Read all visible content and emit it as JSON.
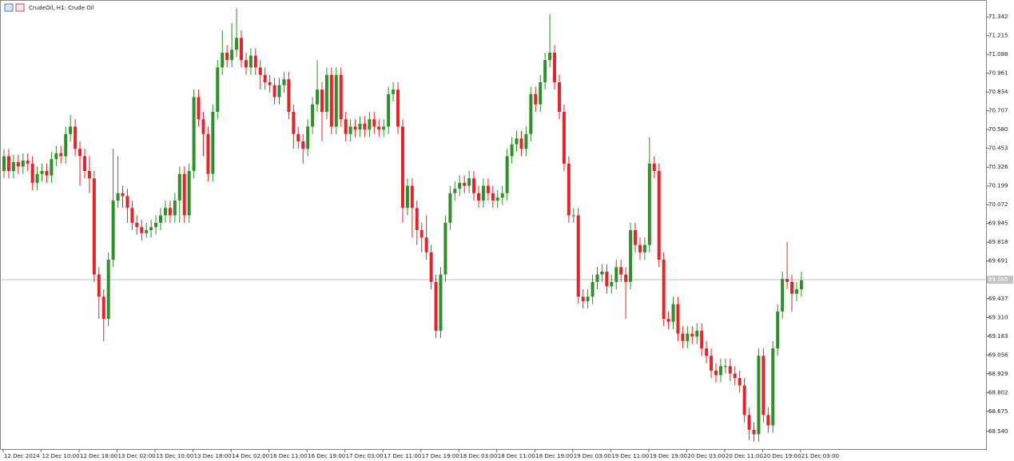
{
  "chart_data": {
    "type": "candlestick",
    "title": "CrudeOil, H1:  Crude Oil",
    "up_color": "#2f8f2a",
    "down_color": "#e3242b",
    "ylim": [
      68.42,
      71.44
    ],
    "yticks": [
      71.342,
      71.215,
      71.088,
      70.961,
      70.834,
      70.707,
      {
        "value": 70.58,
        "label": "70.580"
      },
      70.453,
      70.326,
      70.199,
      70.072,
      69.945,
      69.818,
      69.691,
      69.437,
      {
        "value": 69.31,
        "label": "69.310"
      },
      69.183,
      69.056,
      68.929,
      68.802,
      68.675,
      {
        "value": 68.54,
        "label": "68.540"
      }
    ],
    "current_price": {
      "value": 69.565,
      "label": "69.565"
    },
    "x_labels": [
      "12 Dec 2024",
      "12 Dec 10:00",
      "12 Dec 18:00",
      "13 Dec 02:00",
      "13 Dec 10:00",
      "13 Dec 18:00",
      "14 Dec 02:00",
      "16 Dec 11:00",
      "16 Dec 19:00",
      "17 Dec 03:00",
      "17 Dec 11:00",
      "17 Dec 19:00",
      "18 Dec 03:00",
      "18 Dec 11:00",
      "18 Dec 19:00",
      "19 Dec 03:00",
      "19 Dec 11:00",
      "19 Dec 19:00",
      "20 Dec 03:00",
      "20 Dec 11:00",
      "20 Dec 19:00",
      "21 Dec 03:00"
    ],
    "open": [
      70.3,
      70.4,
      70.3,
      70.36,
      70.33,
      70.37,
      70.35,
      70.22,
      70.28,
      70.3,
      70.27,
      70.38,
      70.42,
      70.4,
      70.55,
      70.6,
      70.45,
      70.4,
      70.3,
      70.25,
      69.6,
      69.45,
      69.3,
      69.7,
      70.1,
      70.15,
      70.13,
      70.05,
      69.95,
      69.92,
      69.88,
      69.9,
      69.92,
      69.95,
      70.0,
      70.05,
      70.0,
      70.1,
      70.28,
      70.0,
      70.3,
      70.8,
      70.65,
      70.55,
      70.28,
      70.7,
      71.0,
      71.1,
      71.05,
      71.12,
      71.2,
      71.05,
      71.0,
      71.08,
      71.0,
      70.95,
      70.9,
      70.88,
      70.8,
      70.88,
      70.92,
      70.7,
      70.55,
      70.5,
      70.45,
      70.6,
      70.75,
      70.85,
      70.7,
      70.95,
      70.6,
      70.95,
      70.65,
      70.55,
      70.6,
      70.58,
      70.62,
      70.58,
      70.65,
      70.6,
      70.58,
      70.6,
      70.82,
      70.85,
      70.6,
      70.05,
      70.2,
      70.05,
      69.9,
      69.85,
      69.75,
      69.55,
      69.22,
      69.6,
      69.95,
      70.15,
      70.18,
      70.22,
      70.2,
      70.25,
      70.15,
      70.1,
      70.2,
      70.15,
      70.1,
      70.12,
      70.15,
      70.4,
      70.48,
      70.52,
      70.45,
      70.55,
      70.82,
      70.75,
      70.9,
      71.05,
      71.1,
      70.9,
      70.7,
      70.35,
      70.0,
      70.0,
      69.45,
      69.42,
      69.45,
      69.55,
      69.6,
      69.62,
      69.52,
      69.55,
      69.65,
      69.6,
      69.55,
      69.9,
      69.8,
      69.75,
      69.8,
      70.35,
      70.3,
      69.7,
      69.3,
      69.28,
      69.4,
      69.2,
      69.15,
      69.2,
      69.18,
      69.22,
      69.1,
      69.05,
      68.95,
      68.92,
      68.98,
      68.98,
      68.93,
      68.9,
      68.85,
      68.65,
      68.55,
      68.52,
      69.05,
      68.65,
      68.58,
      69.1,
      69.35,
      69.57,
      69.55,
      69.47,
      69.5
    ],
    "high": [
      70.45,
      70.45,
      70.41,
      70.41,
      70.42,
      70.42,
      70.4,
      70.33,
      70.35,
      70.35,
      70.43,
      70.47,
      70.47,
      70.6,
      70.68,
      70.65,
      70.5,
      70.45,
      70.4,
      70.3,
      69.65,
      69.5,
      69.75,
      70.45,
      70.4,
      70.2,
      70.18,
      70.1,
      70.0,
      69.97,
      69.95,
      69.97,
      70.0,
      70.05,
      70.1,
      70.1,
      70.15,
      70.33,
      70.33,
      70.35,
      70.85,
      70.85,
      70.7,
      70.6,
      70.75,
      71.05,
      71.25,
      71.15,
      71.3,
      71.4,
      71.25,
      71.1,
      71.13,
      71.13,
      71.05,
      71.0,
      70.95,
      70.93,
      70.93,
      70.97,
      70.97,
      70.75,
      70.6,
      70.55,
      70.65,
      70.8,
      71.05,
      70.9,
      71.0,
      71.0,
      71.0,
      71.0,
      70.7,
      70.65,
      70.65,
      70.67,
      70.67,
      70.7,
      70.7,
      70.65,
      70.65,
      70.87,
      70.9,
      70.9,
      70.65,
      70.25,
      70.25,
      70.1,
      69.95,
      70.0,
      69.8,
      69.6,
      69.65,
      70.0,
      70.2,
      70.23,
      70.27,
      70.27,
      70.3,
      70.3,
      70.2,
      70.25,
      70.25,
      70.2,
      70.17,
      70.2,
      70.45,
      70.53,
      70.57,
      70.57,
      70.6,
      70.87,
      70.87,
      70.95,
      71.1,
      71.36,
      71.15,
      70.95,
      70.75,
      70.4,
      70.05,
      70.05,
      69.5,
      69.5,
      69.6,
      69.65,
      69.67,
      69.67,
      69.6,
      69.7,
      69.7,
      69.65,
      69.95,
      69.95,
      69.85,
      69.85,
      70.53,
      70.4,
      70.35,
      69.75,
      69.35,
      69.45,
      69.45,
      69.25,
      69.25,
      69.25,
      69.27,
      69.27,
      69.15,
      69.1,
      69.0,
      69.03,
      69.03,
      69.03,
      68.98,
      68.95,
      68.9,
      68.7,
      68.6,
      69.1,
      69.1,
      68.7,
      69.15,
      69.4,
      69.62,
      69.82,
      69.6,
      69.55,
      69.62
    ],
    "low": [
      70.25,
      70.25,
      70.25,
      70.28,
      70.28,
      70.3,
      70.17,
      70.17,
      70.23,
      70.22,
      70.22,
      70.33,
      70.35,
      70.35,
      70.5,
      70.4,
      70.2,
      70.25,
      70.15,
      69.55,
      69.3,
      69.15,
      69.25,
      69.65,
      70.05,
      70.05,
      69.95,
      69.9,
      69.87,
      69.83,
      69.85,
      69.85,
      69.87,
      69.9,
      69.95,
      69.95,
      69.95,
      69.95,
      69.95,
      69.95,
      70.25,
      70.6,
      70.4,
      70.23,
      70.23,
      70.65,
      70.95,
      71.0,
      71.0,
      71.07,
      71.0,
      70.95,
      70.95,
      70.95,
      70.85,
      70.85,
      70.83,
      70.75,
      70.75,
      70.83,
      70.65,
      70.45,
      70.45,
      70.35,
      70.4,
      70.55,
      70.7,
      70.5,
      70.65,
      70.55,
      70.55,
      70.6,
      70.5,
      70.5,
      70.53,
      70.53,
      70.53,
      70.53,
      70.55,
      70.53,
      70.53,
      70.55,
      70.77,
      70.55,
      69.95,
      70.0,
      69.85,
      69.8,
      69.75,
      69.7,
      69.5,
      69.17,
      69.17,
      69.55,
      69.9,
      70.1,
      70.13,
      70.15,
      70.15,
      70.1,
      70.05,
      70.05,
      70.1,
      70.05,
      70.05,
      70.07,
      70.1,
      70.35,
      70.43,
      70.4,
      70.4,
      70.5,
      70.7,
      70.7,
      70.85,
      71.0,
      70.85,
      70.65,
      70.3,
      69.95,
      69.95,
      69.4,
      69.37,
      69.37,
      69.4,
      69.5,
      69.55,
      69.47,
      69.47,
      69.5,
      69.55,
      69.3,
      69.5,
      69.75,
      69.7,
      69.7,
      69.75,
      70.25,
      69.65,
      69.25,
      69.23,
      69.23,
      69.15,
      69.1,
      69.1,
      69.13,
      69.13,
      69.05,
      69.0,
      68.9,
      68.87,
      68.87,
      68.93,
      68.88,
      68.85,
      68.8,
      68.6,
      68.48,
      68.47,
      68.47,
      68.6,
      68.53,
      68.53,
      69.05,
      69.3,
      69.5,
      69.35,
      69.42,
      69.45
    ],
    "close": [
      70.4,
      70.3,
      70.36,
      70.33,
      70.37,
      70.35,
      70.22,
      70.28,
      70.3,
      70.27,
      70.38,
      70.42,
      70.4,
      70.55,
      70.6,
      70.45,
      70.4,
      70.3,
      70.25,
      69.6,
      69.45,
      69.3,
      69.7,
      70.1,
      70.15,
      70.13,
      70.05,
      69.95,
      69.92,
      69.88,
      69.9,
      69.92,
      69.95,
      70.0,
      70.05,
      70.0,
      70.1,
      70.28,
      70.0,
      70.3,
      70.8,
      70.65,
      70.55,
      70.28,
      70.7,
      71.0,
      71.1,
      71.05,
      71.12,
      71.2,
      71.05,
      71.0,
      71.08,
      71.0,
      70.95,
      70.9,
      70.88,
      70.8,
      70.88,
      70.92,
      70.7,
      70.55,
      70.5,
      70.45,
      70.6,
      70.75,
      70.85,
      70.7,
      70.95,
      70.6,
      70.95,
      70.65,
      70.55,
      70.6,
      70.58,
      70.62,
      70.58,
      70.65,
      70.6,
      70.58,
      70.6,
      70.82,
      70.85,
      70.6,
      70.05,
      70.2,
      70.05,
      69.9,
      69.85,
      69.75,
      69.55,
      69.22,
      69.6,
      69.95,
      70.15,
      70.18,
      70.22,
      70.2,
      70.25,
      70.15,
      70.1,
      70.2,
      70.15,
      70.1,
      70.12,
      70.15,
      70.4,
      70.48,
      70.52,
      70.45,
      70.55,
      70.82,
      70.75,
      70.9,
      71.05,
      71.1,
      70.9,
      70.7,
      70.35,
      70.0,
      70.0,
      69.45,
      69.42,
      69.45,
      69.55,
      69.6,
      69.62,
      69.52,
      69.55,
      69.65,
      69.6,
      69.55,
      69.9,
      69.8,
      69.75,
      69.8,
      70.35,
      70.3,
      69.7,
      69.3,
      69.28,
      69.4,
      69.2,
      69.15,
      69.2,
      69.18,
      69.22,
      69.1,
      69.05,
      68.95,
      68.92,
      68.98,
      68.98,
      68.93,
      68.9,
      68.85,
      68.65,
      68.55,
      68.52,
      69.05,
      68.65,
      68.58,
      69.1,
      69.35,
      69.57,
      69.55,
      69.47,
      69.5,
      69.56
    ]
  }
}
